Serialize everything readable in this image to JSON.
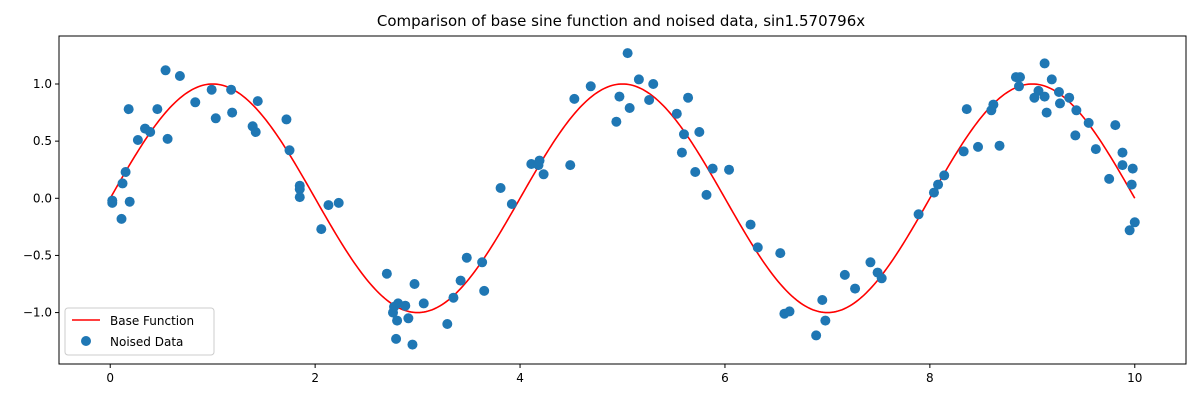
{
  "chart_data": {
    "type": "line+scatter",
    "title": "Comparison of base sine function and noised data, sin1.570796x",
    "xlabel": "",
    "ylabel": "",
    "xlim": [
      -0.5,
      10.5
    ],
    "ylim": [
      -1.45,
      1.42
    ],
    "x_ticks": [
      0,
      2,
      4,
      6,
      8,
      10
    ],
    "y_ticks": [
      -1.0,
      -0.5,
      0.0,
      0.5,
      1.0
    ],
    "x_tick_labels": [
      "0",
      "2",
      "4",
      "6",
      "8",
      "10"
    ],
    "y_tick_labels": [
      "−1.0",
      "−0.5",
      "0.0",
      "0.5",
      "1.0"
    ],
    "grid": false,
    "legend": {
      "placement": "lower-left",
      "entries": [
        "Base Function",
        "Noised Data"
      ]
    },
    "colors": {
      "line": "#ff0000",
      "points": "#1f77b4"
    },
    "series": [
      {
        "name": "Base Function",
        "kind": "line",
        "function": "sin(1.570796*x)",
        "x_range": [
          0,
          10
        ]
      },
      {
        "name": "Noised Data",
        "kind": "scatter",
        "points": [
          [
            0.02,
            -0.04
          ],
          [
            0.02,
            -0.02
          ],
          [
            0.11,
            -0.18
          ],
          [
            0.12,
            0.13
          ],
          [
            0.15,
            0.23
          ],
          [
            0.18,
            0.78
          ],
          [
            0.19,
            -0.03
          ],
          [
            0.27,
            0.51
          ],
          [
            0.34,
            0.61
          ],
          [
            0.39,
            0.58
          ],
          [
            0.46,
            0.78
          ],
          [
            0.54,
            1.12
          ],
          [
            0.56,
            0.52
          ],
          [
            0.68,
            1.07
          ],
          [
            0.83,
            0.84
          ],
          [
            0.99,
            0.95
          ],
          [
            1.03,
            0.7
          ],
          [
            1.18,
            0.95
          ],
          [
            1.19,
            0.75
          ],
          [
            1.39,
            0.63
          ],
          [
            1.42,
            0.58
          ],
          [
            1.44,
            0.85
          ],
          [
            1.72,
            0.69
          ],
          [
            1.75,
            0.42
          ],
          [
            1.85,
            0.11
          ],
          [
            1.85,
            0.08
          ],
          [
            1.85,
            0.01
          ],
          [
            2.06,
            -0.27
          ],
          [
            2.13,
            -0.06
          ],
          [
            2.23,
            -0.04
          ],
          [
            2.7,
            -0.66
          ],
          [
            2.76,
            -1.0
          ],
          [
            2.77,
            -0.95
          ],
          [
            2.79,
            -1.23
          ],
          [
            2.8,
            -1.07
          ],
          [
            2.81,
            -0.92
          ],
          [
            2.88,
            -0.94
          ],
          [
            2.91,
            -1.05
          ],
          [
            2.95,
            -1.28
          ],
          [
            2.97,
            -0.75
          ],
          [
            3.06,
            -0.92
          ],
          [
            3.29,
            -1.1
          ],
          [
            3.35,
            -0.87
          ],
          [
            3.42,
            -0.72
          ],
          [
            3.48,
            -0.52
          ],
          [
            3.63,
            -0.56
          ],
          [
            3.65,
            -0.81
          ],
          [
            3.81,
            0.09
          ],
          [
            3.92,
            -0.05
          ],
          [
            4.11,
            0.3
          ],
          [
            4.18,
            0.29
          ],
          [
            4.19,
            0.33
          ],
          [
            4.23,
            0.21
          ],
          [
            4.49,
            0.29
          ],
          [
            4.53,
            0.87
          ],
          [
            4.69,
            0.98
          ],
          [
            4.94,
            0.67
          ],
          [
            4.97,
            0.89
          ],
          [
            5.05,
            1.27
          ],
          [
            5.07,
            0.79
          ],
          [
            5.16,
            1.04
          ],
          [
            5.26,
            0.86
          ],
          [
            5.3,
            1.0
          ],
          [
            5.53,
            0.74
          ],
          [
            5.58,
            0.4
          ],
          [
            5.6,
            0.56
          ],
          [
            5.64,
            0.88
          ],
          [
            5.71,
            0.23
          ],
          [
            5.75,
            0.58
          ],
          [
            5.82,
            0.03
          ],
          [
            5.88,
            0.26
          ],
          [
            6.04,
            0.25
          ],
          [
            6.25,
            -0.23
          ],
          [
            6.32,
            -0.43
          ],
          [
            6.54,
            -0.48
          ],
          [
            6.58,
            -1.01
          ],
          [
            6.63,
            -0.99
          ],
          [
            6.89,
            -1.2
          ],
          [
            6.95,
            -0.89
          ],
          [
            6.98,
            -1.07
          ],
          [
            7.17,
            -0.67
          ],
          [
            7.27,
            -0.79
          ],
          [
            7.42,
            -0.56
          ],
          [
            7.49,
            -0.65
          ],
          [
            7.53,
            -0.7
          ],
          [
            7.89,
            -0.14
          ],
          [
            8.04,
            0.05
          ],
          [
            8.08,
            0.12
          ],
          [
            8.14,
            0.2
          ],
          [
            8.33,
            0.41
          ],
          [
            8.36,
            0.78
          ],
          [
            8.47,
            0.45
          ],
          [
            8.6,
            0.77
          ],
          [
            8.62,
            0.82
          ],
          [
            8.68,
            0.46
          ],
          [
            8.84,
            1.06
          ],
          [
            8.87,
            0.98
          ],
          [
            8.88,
            1.06
          ],
          [
            9.02,
            0.88
          ],
          [
            9.06,
            0.94
          ],
          [
            9.12,
            1.18
          ],
          [
            9.12,
            0.89
          ],
          [
            9.14,
            0.75
          ],
          [
            9.19,
            1.04
          ],
          [
            9.26,
            0.93
          ],
          [
            9.27,
            0.83
          ],
          [
            9.36,
            0.88
          ],
          [
            9.42,
            0.55
          ],
          [
            9.43,
            0.77
          ],
          [
            9.55,
            0.66
          ],
          [
            9.62,
            0.43
          ],
          [
            9.75,
            0.17
          ],
          [
            9.81,
            0.64
          ],
          [
            9.88,
            0.4
          ],
          [
            9.88,
            0.29
          ],
          [
            9.95,
            -0.28
          ],
          [
            9.97,
            0.12
          ],
          [
            9.98,
            0.26
          ],
          [
            10.0,
            -0.21
          ]
        ]
      }
    ]
  }
}
